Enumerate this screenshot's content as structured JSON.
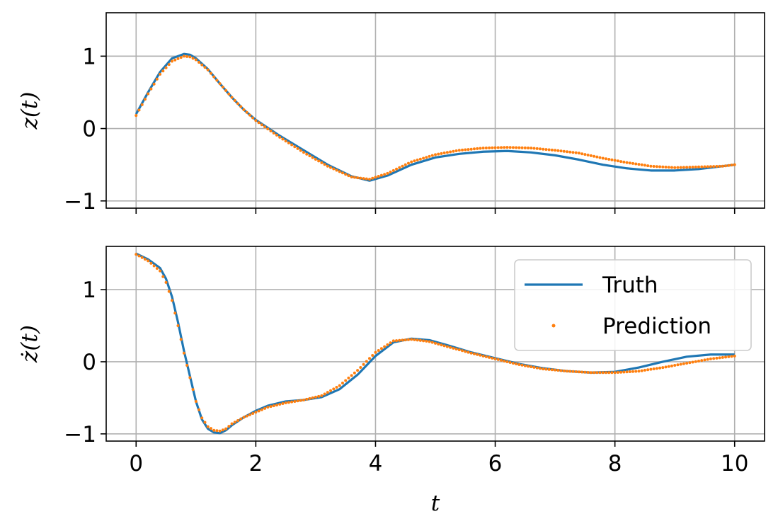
{
  "chart_data": [
    {
      "type": "line",
      "ylabel": "z(t)",
      "xlabel": "",
      "xlim": [
        -0.5,
        10.5
      ],
      "ylim": [
        -1.1,
        1.6
      ],
      "xticks": [
        0,
        2,
        4,
        6,
        8,
        10
      ],
      "yticks": [
        -1,
        0,
        1
      ],
      "ytick_labels": [
        "−1",
        "0",
        "1"
      ],
      "xtick_labels_visible": false,
      "grid": true,
      "series": [
        {
          "name": "Truth",
          "style": "line",
          "color": "#1f77b4",
          "x": [
            0,
            0.2,
            0.4,
            0.6,
            0.8,
            0.9,
            1.0,
            1.2,
            1.4,
            1.6,
            1.8,
            2.0,
            2.4,
            2.8,
            3.2,
            3.6,
            3.9,
            4.2,
            4.6,
            5.0,
            5.4,
            5.8,
            6.2,
            6.6,
            7.0,
            7.4,
            7.8,
            8.2,
            8.6,
            9.0,
            9.4,
            9.8,
            10.0
          ],
          "y": [
            0.2,
            0.5,
            0.78,
            0.97,
            1.03,
            1.02,
            0.97,
            0.82,
            0.62,
            0.43,
            0.26,
            0.12,
            -0.1,
            -0.3,
            -0.5,
            -0.66,
            -0.72,
            -0.65,
            -0.5,
            -0.4,
            -0.35,
            -0.32,
            -0.31,
            -0.33,
            -0.37,
            -0.43,
            -0.5,
            -0.55,
            -0.58,
            -0.58,
            -0.56,
            -0.52,
            -0.5
          ]
        },
        {
          "name": "Prediction",
          "style": "dots",
          "color": "#ff7f0e",
          "x": [
            0,
            0.2,
            0.4,
            0.6,
            0.8,
            0.9,
            1.0,
            1.2,
            1.4,
            1.6,
            1.8,
            2.0,
            2.4,
            2.8,
            3.2,
            3.6,
            3.9,
            4.2,
            4.6,
            5.0,
            5.4,
            5.8,
            6.2,
            6.6,
            7.0,
            7.4,
            7.8,
            8.2,
            8.6,
            9.0,
            9.4,
            9.8,
            10.0
          ],
          "y": [
            0.18,
            0.48,
            0.75,
            0.93,
            1.0,
            0.99,
            0.95,
            0.81,
            0.62,
            0.43,
            0.26,
            0.11,
            -0.12,
            -0.33,
            -0.52,
            -0.67,
            -0.7,
            -0.62,
            -0.46,
            -0.36,
            -0.3,
            -0.27,
            -0.26,
            -0.27,
            -0.3,
            -0.34,
            -0.41,
            -0.47,
            -0.52,
            -0.54,
            -0.53,
            -0.52,
            -0.5
          ]
        }
      ]
    },
    {
      "type": "line",
      "ylabel": "ż(t)",
      "xlabel": "t",
      "xlim": [
        -0.5,
        10.5
      ],
      "ylim": [
        -1.1,
        1.6
      ],
      "xticks": [
        0,
        2,
        4,
        6,
        8,
        10
      ],
      "xtick_labels": [
        "0",
        "2",
        "4",
        "6",
        "8",
        "10"
      ],
      "yticks": [
        -1,
        0,
        1
      ],
      "ytick_labels": [
        "−1",
        "0",
        "1"
      ],
      "grid": true,
      "legend": {
        "placement": "upper right",
        "entries": [
          "Truth",
          "Prediction"
        ]
      },
      "series": [
        {
          "name": "Truth",
          "style": "line",
          "color": "#1f77b4",
          "x": [
            0,
            0.2,
            0.4,
            0.5,
            0.6,
            0.7,
            0.8,
            0.9,
            1.0,
            1.1,
            1.2,
            1.3,
            1.4,
            1.5,
            1.6,
            1.8,
            2.0,
            2.2,
            2.5,
            2.8,
            3.1,
            3.4,
            3.7,
            4.0,
            4.3,
            4.6,
            4.9,
            5.2,
            5.6,
            6.0,
            6.4,
            6.8,
            7.2,
            7.6,
            8.0,
            8.4,
            8.8,
            9.2,
            9.6,
            10.0
          ],
          "y": [
            1.5,
            1.42,
            1.3,
            1.15,
            0.9,
            0.55,
            0.15,
            -0.2,
            -0.55,
            -0.8,
            -0.93,
            -0.98,
            -0.99,
            -0.95,
            -0.88,
            -0.77,
            -0.68,
            -0.61,
            -0.55,
            -0.53,
            -0.49,
            -0.38,
            -0.18,
            0.08,
            0.27,
            0.32,
            0.3,
            0.23,
            0.13,
            0.05,
            -0.03,
            -0.09,
            -0.13,
            -0.15,
            -0.14,
            -0.08,
            0.0,
            0.07,
            0.1,
            0.1
          ]
        },
        {
          "name": "Prediction",
          "style": "dots",
          "color": "#ff7f0e",
          "x": [
            0,
            0.2,
            0.4,
            0.5,
            0.6,
            0.7,
            0.8,
            0.9,
            1.0,
            1.1,
            1.2,
            1.3,
            1.4,
            1.5,
            1.6,
            1.8,
            2.0,
            2.2,
            2.5,
            2.8,
            3.1,
            3.4,
            3.7,
            4.0,
            4.3,
            4.6,
            4.9,
            5.2,
            5.6,
            6.0,
            6.4,
            6.8,
            7.2,
            7.6,
            8.0,
            8.4,
            8.8,
            9.2,
            9.6,
            10.0
          ],
          "y": [
            1.49,
            1.4,
            1.26,
            1.1,
            0.85,
            0.5,
            0.12,
            -0.22,
            -0.55,
            -0.78,
            -0.9,
            -0.95,
            -0.96,
            -0.93,
            -0.86,
            -0.77,
            -0.7,
            -0.63,
            -0.57,
            -0.53,
            -0.47,
            -0.33,
            -0.12,
            0.13,
            0.29,
            0.31,
            0.28,
            0.21,
            0.12,
            0.04,
            -0.04,
            -0.1,
            -0.13,
            -0.15,
            -0.15,
            -0.13,
            -0.08,
            -0.02,
            0.04,
            0.08
          ]
        }
      ]
    }
  ]
}
